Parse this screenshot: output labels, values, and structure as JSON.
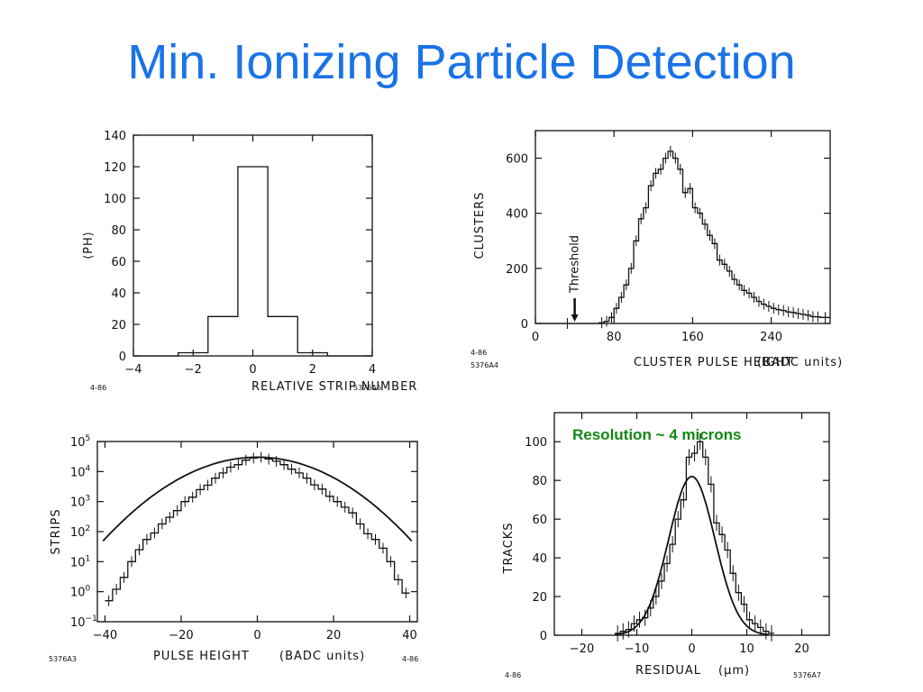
{
  "slide": {
    "title": "Min. Ionizing Particle Detection",
    "accent_color": "#1a73e8",
    "annotation_color": "#118811"
  },
  "chart_data": [
    {
      "id": "strip",
      "type": "bar",
      "xlabel": "RELATIVE STRIP NUMBER",
      "ylabel": "⟨PH⟩",
      "xlim": [
        -4,
        4
      ],
      "ylim": [
        0,
        140
      ],
      "xticks": [
        -4,
        -2,
        0,
        2,
        4
      ],
      "yticks": [
        0,
        20,
        40,
        60,
        80,
        100,
        120,
        140
      ],
      "step": {
        "edges": [
          -4,
          -2.5,
          -1.5,
          -0.5,
          0.5,
          1.5,
          2.5,
          4
        ],
        "values": [
          0,
          2,
          25,
          120,
          25,
          2,
          0
        ]
      },
      "codes": [
        "4-86",
        "5376A6"
      ]
    },
    {
      "id": "cluster",
      "type": "bar",
      "xlabel": "CLUSTER PULSE HEIGHT",
      "xunit": "(BADC units)",
      "ylabel": "CLUSTERS",
      "xlim": [
        0,
        300
      ],
      "ylim": [
        0,
        700
      ],
      "xticks": [
        0,
        80,
        160,
        240
      ],
      "yticks": [
        0,
        200,
        400,
        600
      ],
      "annotation": "Threshold",
      "threshold_x": 40,
      "step": {
        "edges": [
          0,
          65,
          70,
          75,
          80,
          85,
          90,
          95,
          100,
          105,
          110,
          115,
          120,
          125,
          130,
          135,
          140,
          145,
          150,
          155,
          160,
          165,
          170,
          175,
          180,
          185,
          190,
          195,
          200,
          205,
          210,
          215,
          220,
          225,
          230,
          235,
          240,
          245,
          250,
          255,
          260,
          265,
          270,
          275,
          280,
          285,
          290,
          300
        ],
        "values": [
          0,
          3,
          8,
          22,
          55,
          95,
          140,
          200,
          300,
          380,
          420,
          500,
          545,
          560,
          600,
          625,
          600,
          560,
          475,
          490,
          420,
          400,
          360,
          320,
          290,
          230,
          215,
          190,
          160,
          140,
          120,
          110,
          95,
          80,
          70,
          62,
          55,
          50,
          47,
          42,
          40,
          36,
          33,
          30,
          25,
          24,
          22
        ]
      },
      "codes": [
        "4-86",
        "5376A4"
      ]
    },
    {
      "id": "pulse",
      "type": "line",
      "xlabel": "PULSE HEIGHT",
      "xunit": "(BADC units)",
      "ylabel": "STRIPS",
      "yscale": "log",
      "xlim": [
        -42,
        42
      ],
      "ylim": [
        0.1,
        100000
      ],
      "xticks": [
        -40,
        -20,
        0,
        20,
        40
      ],
      "yticks": [
        "10",
        "10",
        "10",
        "10",
        "10",
        "10",
        "10"
      ],
      "ytick_exponents": [
        "5",
        "4",
        "3",
        "2",
        "1",
        "0",
        "-1"
      ],
      "ytick_values": [
        100000,
        10000,
        1000,
        100,
        10,
        1,
        0.1
      ],
      "fit": {
        "peak": 30000,
        "sigma": 11.3
      },
      "step": {
        "edges": [
          -40,
          -38,
          -36,
          -34,
          -32,
          -30,
          -28,
          -26,
          -24,
          -22,
          -20,
          -18,
          -16,
          -14,
          -12,
          -10,
          -8,
          -6,
          -4,
          -2,
          0,
          2,
          4,
          6,
          8,
          10,
          12,
          14,
          16,
          18,
          20,
          22,
          24,
          26,
          28,
          30,
          32,
          34,
          36,
          38,
          40
        ],
        "values": [
          0.5,
          1.2,
          3,
          10,
          25,
          55,
          90,
          180,
          300,
          500,
          1000,
          1400,
          2500,
          3500,
          6000,
          9000,
          14000,
          17000,
          24000,
          28000,
          30000,
          26000,
          22000,
          17000,
          12000,
          9000,
          6000,
          3600,
          2600,
          1500,
          1000,
          650,
          420,
          180,
          85,
          55,
          28,
          10,
          2.5,
          0.9
        ]
      },
      "codes": [
        "5376A3",
        "4-86"
      ]
    },
    {
      "id": "residual",
      "type": "line",
      "title": "Resolution ~ 4 microns",
      "xlabel": "RESIDUAL",
      "xunit": "(μm)",
      "ylabel": "TRACKS",
      "xlim": [
        -25,
        25
      ],
      "ylim": [
        0,
        115
      ],
      "xticks": [
        -20,
        -10,
        0,
        10,
        20
      ],
      "yticks": [
        0,
        20,
        40,
        60,
        80,
        100
      ],
      "fit": {
        "peak": 82,
        "sigma": 4.2,
        "mean": 0
      },
      "step": {
        "edges": [
          -14,
          -13,
          -12,
          -11,
          -10,
          -9,
          -8,
          -7,
          -6,
          -5,
          -4,
          -3,
          -2,
          -1,
          0,
          1,
          2,
          3,
          4,
          5,
          6,
          7,
          8,
          9,
          10,
          11,
          12,
          13,
          14,
          15
        ],
        "values": [
          1,
          2,
          3,
          6,
          8,
          9,
          14,
          20,
          28,
          37,
          47,
          60,
          70,
          92,
          94,
          100,
          92,
          78,
          58,
          52,
          44,
          32,
          22,
          16,
          8,
          6,
          4,
          2,
          1
        ]
      },
      "codes": [
        "4-86",
        "5376A7"
      ]
    }
  ]
}
